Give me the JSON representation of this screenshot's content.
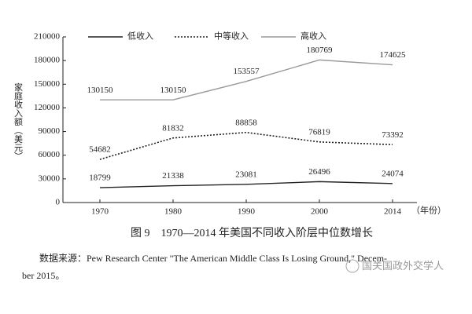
{
  "chart_data": {
    "type": "line",
    "y_label": "家庭收入额（美元）",
    "x_label": "（年份）",
    "categories": [
      "1970",
      "1980",
      "1990",
      "2000",
      "2014"
    ],
    "series": [
      {
        "name": "低收入",
        "color": "#222222",
        "style": "solid",
        "values": [
          18799,
          21338,
          23081,
          26496,
          24074
        ]
      },
      {
        "name": "中等收入",
        "color": "#222222",
        "style": "dotted",
        "values": [
          54682,
          81832,
          88858,
          76819,
          73392
        ]
      },
      {
        "name": "高收入",
        "color": "#999999",
        "style": "solid",
        "values": [
          130150,
          130150,
          153557,
          180769,
          174625
        ]
      }
    ],
    "ylim": [
      0,
      210000
    ],
    "yticks": [
      0,
      30000,
      60000,
      90000,
      120000,
      150000,
      180000,
      210000
    ],
    "legend": "top",
    "grid": false
  },
  "caption": "图 9　1970—2014 年美国不同收入阶层中位数增长",
  "source": [
    "数据来源：Pew Research Center \"The American Middle Class Is Losing Ground,\" Decem-",
    "ber 2015。"
  ],
  "watermark": "国关国政外交学人"
}
